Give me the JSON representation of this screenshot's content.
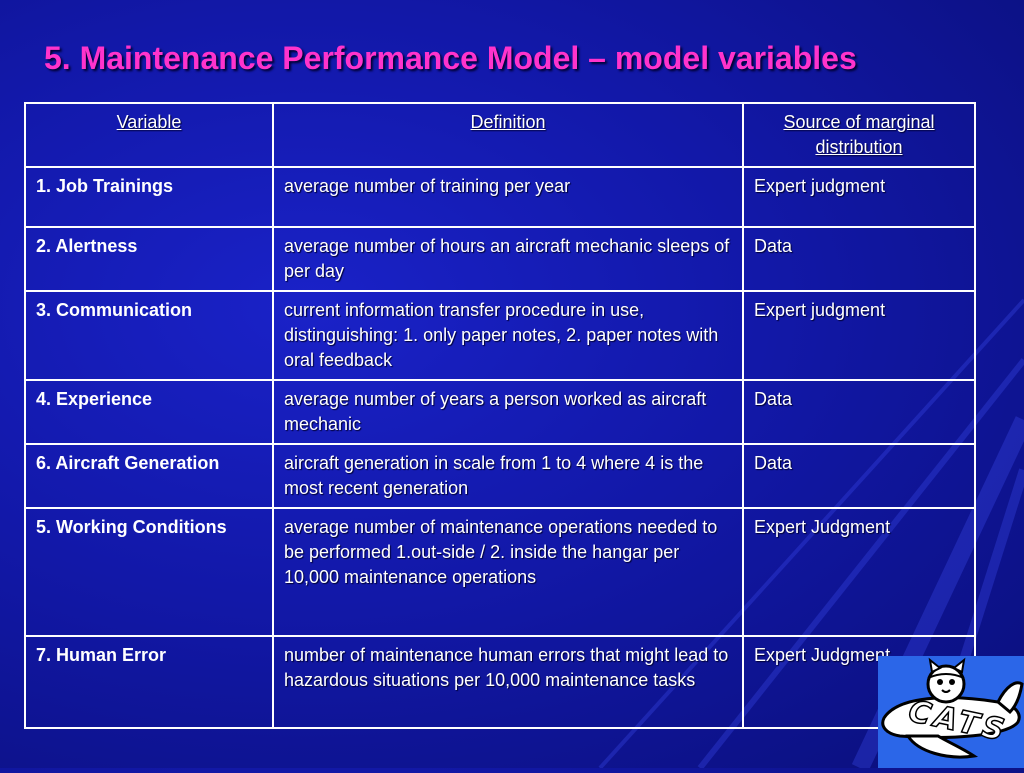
{
  "title": "5. Maintenance Performance Model – model variables",
  "table": {
    "headers": [
      "Variable",
      "Definition",
      "Source of marginal distribution"
    ],
    "rows": [
      {
        "variable": "1. Job Trainings",
        "definition": "average number of training per year",
        "source": "Expert judgment"
      },
      {
        "variable": "2. Alertness",
        "definition": "average number of hours an aircraft mechanic sleeps of per day",
        "source": "Data"
      },
      {
        "variable": "3. Communication",
        "definition": "current information transfer procedure in use, distinguishing: 1. only paper notes, 2. paper notes with oral feedback",
        "source": "Expert judgment"
      },
      {
        "variable": "4. Experience",
        "definition": "average number of years a person worked as aircraft mechanic",
        "source": "Data"
      },
      {
        "variable": "6. Aircraft Generation",
        "definition": "aircraft generation in scale from 1 to 4 where 4 is the most recent generation",
        "source": "Data"
      },
      {
        "variable": "5. Working Conditions",
        "definition": "average number of maintenance operations needed to be performed 1.out-side / 2. inside the hangar per 10,000 maintenance operations",
        "source": "Expert Judgment"
      },
      {
        "variable": "7. Human Error",
        "definition": "number of maintenance human errors that might lead to hazardous situations per 10,000 maintenance tasks",
        "source": "Expert Judgment"
      }
    ]
  },
  "logo": {
    "text": "CATS",
    "icon": "cats-mascot-logo"
  },
  "colors": {
    "title": "#ff33cc",
    "background": "#1218a8",
    "border": "#ffffff",
    "logo_bg": "#2b66e8"
  }
}
